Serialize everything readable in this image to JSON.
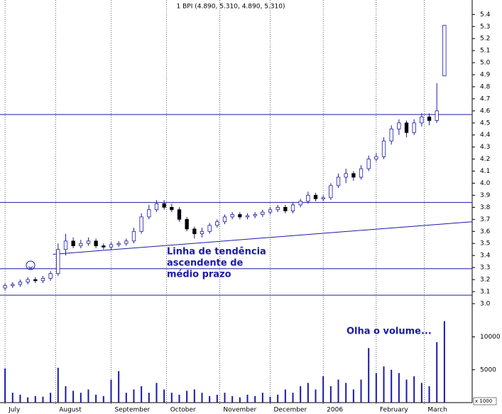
{
  "chart_data": {
    "type": "candlestick",
    "title": "1 BPI (4.890, 5.310, 4.890, 5.310)",
    "color": "#1a1aa8",
    "x": [
      1,
      4,
      7,
      10,
      13,
      16,
      19,
      22,
      25,
      28,
      31,
      34,
      37,
      40,
      43,
      46,
      49,
      52,
      55,
      58,
      61,
      64,
      67,
      70,
      73,
      76,
      79,
      82,
      85,
      88,
      91,
      94,
      97,
      100,
      103,
      106,
      109,
      112,
      115,
      118,
      121,
      124,
      127,
      130,
      133,
      136,
      139,
      142,
      145,
      148,
      151,
      154,
      157,
      160,
      163,
      166,
      169,
      172,
      175
    ],
    "open": [
      3.13,
      3.15,
      3.16,
      3.18,
      3.2,
      3.19,
      3.21,
      3.25,
      3.45,
      3.52,
      3.48,
      3.5,
      3.52,
      3.48,
      3.47,
      3.49,
      3.5,
      3.52,
      3.6,
      3.72,
      3.78,
      3.83,
      3.8,
      3.78,
      3.7,
      3.62,
      3.58,
      3.6,
      3.65,
      3.68,
      3.72,
      3.74,
      3.72,
      3.73,
      3.74,
      3.76,
      3.78,
      3.8,
      3.77,
      3.82,
      3.85,
      3.9,
      3.87,
      3.88,
      3.98,
      4.05,
      4.08,
      4.05,
      4.12,
      4.2,
      4.22,
      4.35,
      4.45,
      4.5,
      4.42,
      4.5,
      4.55,
      4.52,
      4.89
    ],
    "high": [
      3.17,
      3.18,
      3.2,
      3.22,
      3.22,
      3.23,
      3.27,
      3.5,
      3.58,
      3.55,
      3.53,
      3.55,
      3.54,
      3.5,
      3.51,
      3.52,
      3.54,
      3.63,
      3.75,
      3.82,
      3.86,
      3.86,
      3.83,
      3.8,
      3.72,
      3.64,
      3.63,
      3.67,
      3.7,
      3.74,
      3.76,
      3.76,
      3.75,
      3.76,
      3.78,
      3.8,
      3.82,
      3.82,
      3.84,
      3.87,
      3.93,
      3.92,
      3.9,
      4.0,
      4.08,
      4.12,
      4.1,
      4.15,
      4.23,
      4.25,
      4.38,
      4.48,
      4.53,
      4.52,
      4.53,
      4.58,
      4.58,
      4.83,
      5.31
    ],
    "low": [
      3.11,
      3.13,
      3.14,
      3.16,
      3.17,
      3.17,
      3.19,
      3.23,
      3.4,
      3.46,
      3.46,
      3.48,
      3.46,
      3.45,
      3.45,
      3.47,
      3.48,
      3.5,
      3.58,
      3.7,
      3.76,
      3.78,
      3.76,
      3.68,
      3.6,
      3.54,
      3.55,
      3.58,
      3.63,
      3.66,
      3.7,
      3.7,
      3.7,
      3.71,
      3.72,
      3.74,
      3.76,
      3.75,
      3.75,
      3.8,
      3.83,
      3.85,
      3.85,
      3.86,
      3.96,
      4.0,
      4.02,
      4.03,
      4.1,
      4.18,
      4.2,
      4.32,
      4.4,
      4.38,
      4.4,
      4.47,
      4.48,
      4.5,
      4.89
    ],
    "close": [
      3.15,
      3.16,
      3.18,
      3.2,
      3.19,
      3.21,
      3.25,
      3.45,
      3.52,
      3.48,
      3.5,
      3.52,
      3.48,
      3.47,
      3.49,
      3.5,
      3.52,
      3.6,
      3.72,
      3.78,
      3.83,
      3.8,
      3.78,
      3.7,
      3.62,
      3.58,
      3.6,
      3.65,
      3.68,
      3.72,
      3.74,
      3.72,
      3.73,
      3.74,
      3.76,
      3.78,
      3.8,
      3.77,
      3.82,
      3.85,
      3.9,
      3.87,
      3.88,
      3.98,
      4.05,
      4.08,
      4.05,
      4.12,
      4.2,
      4.22,
      4.35,
      4.45,
      4.5,
      4.42,
      4.5,
      4.55,
      4.52,
      4.6,
      5.31
    ],
    "xlim": [
      -1,
      186
    ],
    "xticks": [
      {
        "value": 1,
        "label": "July"
      },
      {
        "value": 21,
        "label": "August"
      },
      {
        "value": 43,
        "label": "September"
      },
      {
        "value": 65,
        "label": "October"
      },
      {
        "value": 86,
        "label": "November"
      },
      {
        "value": 106,
        "label": "December"
      },
      {
        "value": 127,
        "label": "2006"
      },
      {
        "value": 148,
        "label": "February"
      },
      {
        "value": 167,
        "label": "March"
      }
    ],
    "ylim": [
      2.97,
      5.52
    ],
    "yticks": [
      {
        "value": 3,
        "label": "3.0"
      },
      3.1,
      3.2,
      3.3,
      3.4,
      3.5,
      3.6,
      3.7,
      3.8,
      3.9,
      {
        "value": 4,
        "label": "4.0"
      },
      4.1,
      4.2,
      4.3,
      4.4,
      4.5,
      4.6,
      4.7,
      4.8,
      4.9,
      {
        "value": 5,
        "label": "5.0"
      },
      5.1,
      5.2,
      5.3,
      5.4
    ],
    "levels": [
      4.57,
      3.84,
      3.29,
      3.07
    ],
    "trendline": {
      "x": [
        20,
        186
      ],
      "y": [
        3.41,
        3.68
      ]
    },
    "annotations": [
      "Linha de tendência",
      "ascendente de",
      "médio prazo",
      "Olha o volume..."
    ],
    "volume": {
      "values": [
        5200,
        1500,
        1200,
        800,
        1000,
        900,
        1500,
        5300,
        2500,
        1800,
        1500,
        2000,
        1200,
        1000,
        3500,
        4800,
        1500,
        2000,
        2500,
        1500,
        3000,
        2000,
        1500,
        1200,
        1800,
        2000,
        1500,
        1000,
        1200,
        1500,
        1000,
        800,
        1200,
        1000,
        1500,
        900,
        1200,
        2000,
        1500,
        2500,
        3000,
        2000,
        4000,
        2500,
        3500,
        3000,
        2000,
        3500,
        8300,
        4500,
        5500,
        5000,
        4500,
        3500,
        4000,
        3000,
        2500,
        9200,
        12400
      ],
      "ylim": [
        0,
        14500
      ],
      "yticks": [
        5000,
        10000
      ],
      "label": "x 1000"
    }
  }
}
